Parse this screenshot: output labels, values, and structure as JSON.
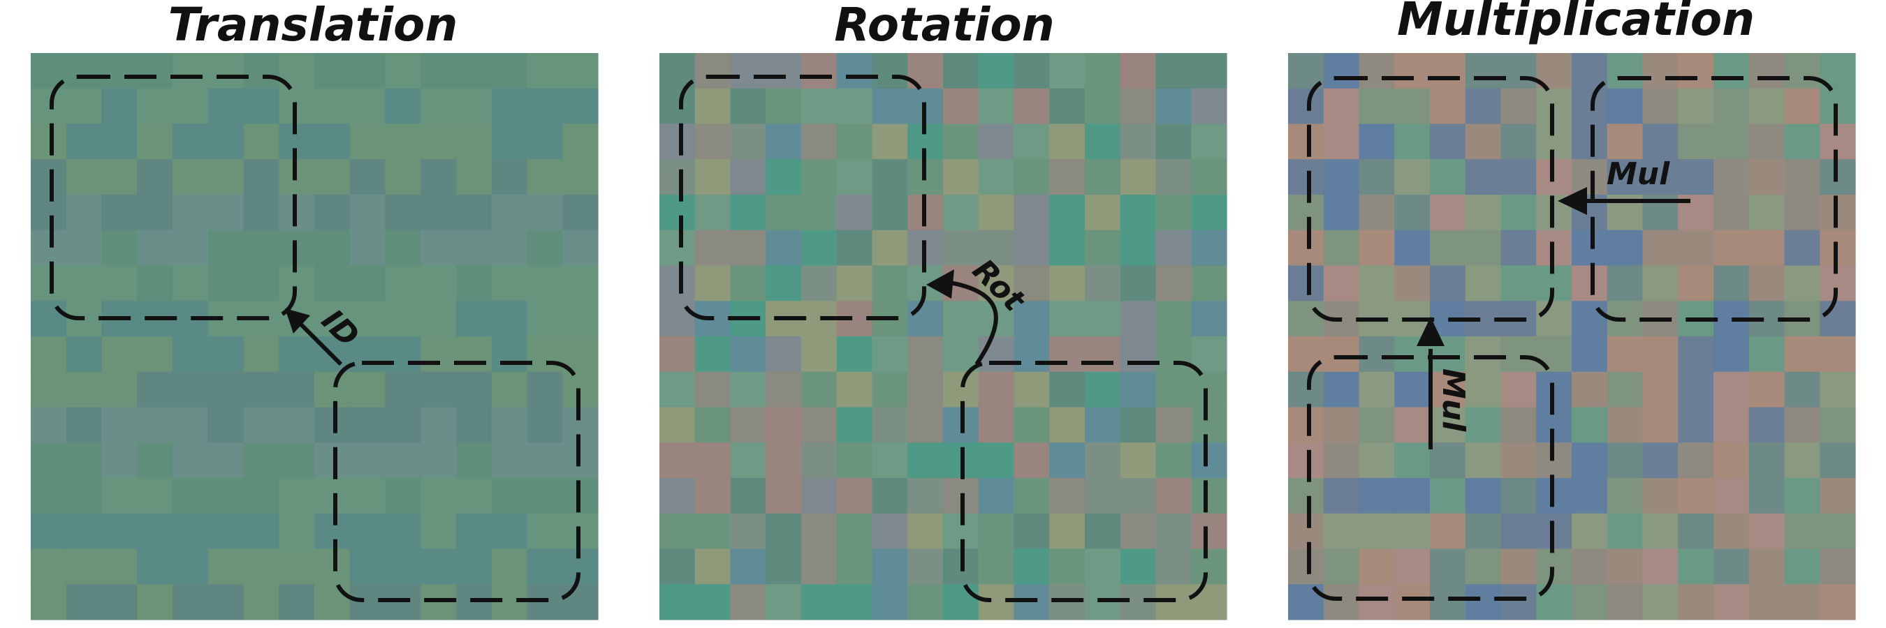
{
  "panels": [
    {
      "title": "Translation",
      "palette": [
        "#5f8f7a",
        "#66947c",
        "#5a8a86",
        "#6b9377",
        "#5f8680",
        "#6a8f88"
      ],
      "seed": 11,
      "arrow_label": "ID"
    },
    {
      "title": "Rotation",
      "palette": [
        "#6a947c",
        "#7c8f84",
        "#5f8a7e",
        "#8a8a80",
        "#6e9a86",
        "#7e8a8f",
        "#8f9a7a",
        "#9a847e",
        "#5f8c96",
        "#4f9a86"
      ],
      "seed": 23,
      "arrow_label": "Rot"
    },
    {
      "title": "Multiplication",
      "palette": [
        "#a88a7a",
        "#8f8a80",
        "#6e8a86",
        "#6a7e96",
        "#7e947e",
        "#9a8a7e",
        "#5f7ea0",
        "#6a9a86",
        "#a88a84",
        "#8a9a80"
      ],
      "seed": 37,
      "arrow_label_top": "Mul",
      "arrow_label_bottom": "Mul"
    }
  ]
}
